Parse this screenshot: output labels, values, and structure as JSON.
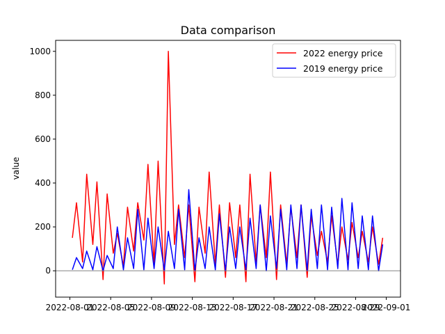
{
  "chart_data": {
    "type": "line",
    "title": "Data comparison",
    "xlabel": "",
    "ylabel": "value",
    "x_range": [
      "2022-08-01",
      "2022-09-01"
    ],
    "x_ticks": [
      "2022-08-01",
      "2022-08-05",
      "2022-08-09",
      "2022-08-13",
      "2022-08-17",
      "2022-08-21",
      "2022-08-25",
      "2022-08-29",
      "2022-09-01"
    ],
    "ylim": [
      -120,
      1050
    ],
    "y_ticks": [
      0,
      200,
      400,
      600,
      800,
      1000
    ],
    "y_tick_labels": [
      "0",
      "200",
      "400",
      "600",
      "800",
      "1000"
    ],
    "grid": false,
    "legend_position": "top-right",
    "reference_line": {
      "y": 0,
      "color": "#808080"
    },
    "series": [
      {
        "name": "2022 energy price",
        "color": "#ff0000",
        "x": [
          "2022-08-01",
          "2022-08-01",
          "2022-08-02",
          "2022-08-02",
          "2022-08-03",
          "2022-08-03",
          "2022-08-04",
          "2022-08-04",
          "2022-08-05",
          "2022-08-05",
          "2022-08-06",
          "2022-08-06",
          "2022-08-07",
          "2022-08-07",
          "2022-08-08",
          "2022-08-08",
          "2022-08-09",
          "2022-08-09",
          "2022-08-10",
          "2022-08-10",
          "2022-08-11",
          "2022-08-11",
          "2022-08-12",
          "2022-08-12",
          "2022-08-13",
          "2022-08-13",
          "2022-08-14",
          "2022-08-14",
          "2022-08-15",
          "2022-08-15",
          "2022-08-16",
          "2022-08-16",
          "2022-08-17",
          "2022-08-17",
          "2022-08-18",
          "2022-08-18",
          "2022-08-19",
          "2022-08-19",
          "2022-08-20",
          "2022-08-20",
          "2022-08-21",
          "2022-08-21",
          "2022-08-22",
          "2022-08-22",
          "2022-08-23",
          "2022-08-23",
          "2022-08-24",
          "2022-08-24",
          "2022-08-25",
          "2022-08-25",
          "2022-08-26",
          "2022-08-26",
          "2022-08-27",
          "2022-08-27",
          "2022-08-28",
          "2022-08-28",
          "2022-08-29",
          "2022-08-29",
          "2022-08-30",
          "2022-08-30",
          "2022-08-31",
          "2022-08-31"
        ],
        "values": [
          150,
          310,
          40,
          440,
          120,
          405,
          -40,
          350,
          80,
          170,
          20,
          290,
          90,
          310,
          140,
          485,
          30,
          500,
          -60,
          1000,
          120,
          300,
          60,
          300,
          -50,
          290,
          80,
          450,
          30,
          300,
          -30,
          310,
          60,
          300,
          -50,
          440,
          40,
          300,
          60,
          450,
          -40,
          300,
          30,
          290,
          60,
          300,
          -30,
          250,
          70,
          180,
          40,
          250,
          30,
          200,
          50,
          220,
          60,
          180,
          40,
          200,
          30,
          150
        ]
      },
      {
        "name": "2019 energy price",
        "color": "#0000ff",
        "x": [
          "2022-08-01",
          "2022-08-01",
          "2022-08-02",
          "2022-08-02",
          "2022-08-03",
          "2022-08-03",
          "2022-08-04",
          "2022-08-04",
          "2022-08-05",
          "2022-08-05",
          "2022-08-06",
          "2022-08-06",
          "2022-08-07",
          "2022-08-07",
          "2022-08-08",
          "2022-08-08",
          "2022-08-09",
          "2022-08-09",
          "2022-08-10",
          "2022-08-10",
          "2022-08-11",
          "2022-08-11",
          "2022-08-12",
          "2022-08-12",
          "2022-08-13",
          "2022-08-13",
          "2022-08-14",
          "2022-08-14",
          "2022-08-15",
          "2022-08-15",
          "2022-08-16",
          "2022-08-16",
          "2022-08-17",
          "2022-08-17",
          "2022-08-18",
          "2022-08-18",
          "2022-08-19",
          "2022-08-19",
          "2022-08-20",
          "2022-08-20",
          "2022-08-21",
          "2022-08-21",
          "2022-08-22",
          "2022-08-22",
          "2022-08-23",
          "2022-08-23",
          "2022-08-24",
          "2022-08-24",
          "2022-08-25",
          "2022-08-25",
          "2022-08-26",
          "2022-08-26",
          "2022-08-27",
          "2022-08-27",
          "2022-08-28",
          "2022-08-28",
          "2022-08-29",
          "2022-08-29",
          "2022-08-30",
          "2022-08-30",
          "2022-08-31",
          "2022-08-31"
        ],
        "values": [
          5,
          60,
          10,
          90,
          5,
          110,
          0,
          70,
          10,
          200,
          5,
          150,
          10,
          280,
          5,
          240,
          10,
          200,
          0,
          180,
          10,
          280,
          5,
          370,
          0,
          150,
          10,
          200,
          5,
          260,
          0,
          200,
          10,
          200,
          5,
          240,
          10,
          300,
          0,
          250,
          10,
          280,
          5,
          300,
          10,
          300,
          0,
          280,
          10,
          300,
          5,
          290,
          10,
          330,
          5,
          310,
          10,
          250,
          5,
          250,
          0,
          120
        ]
      }
    ]
  }
}
